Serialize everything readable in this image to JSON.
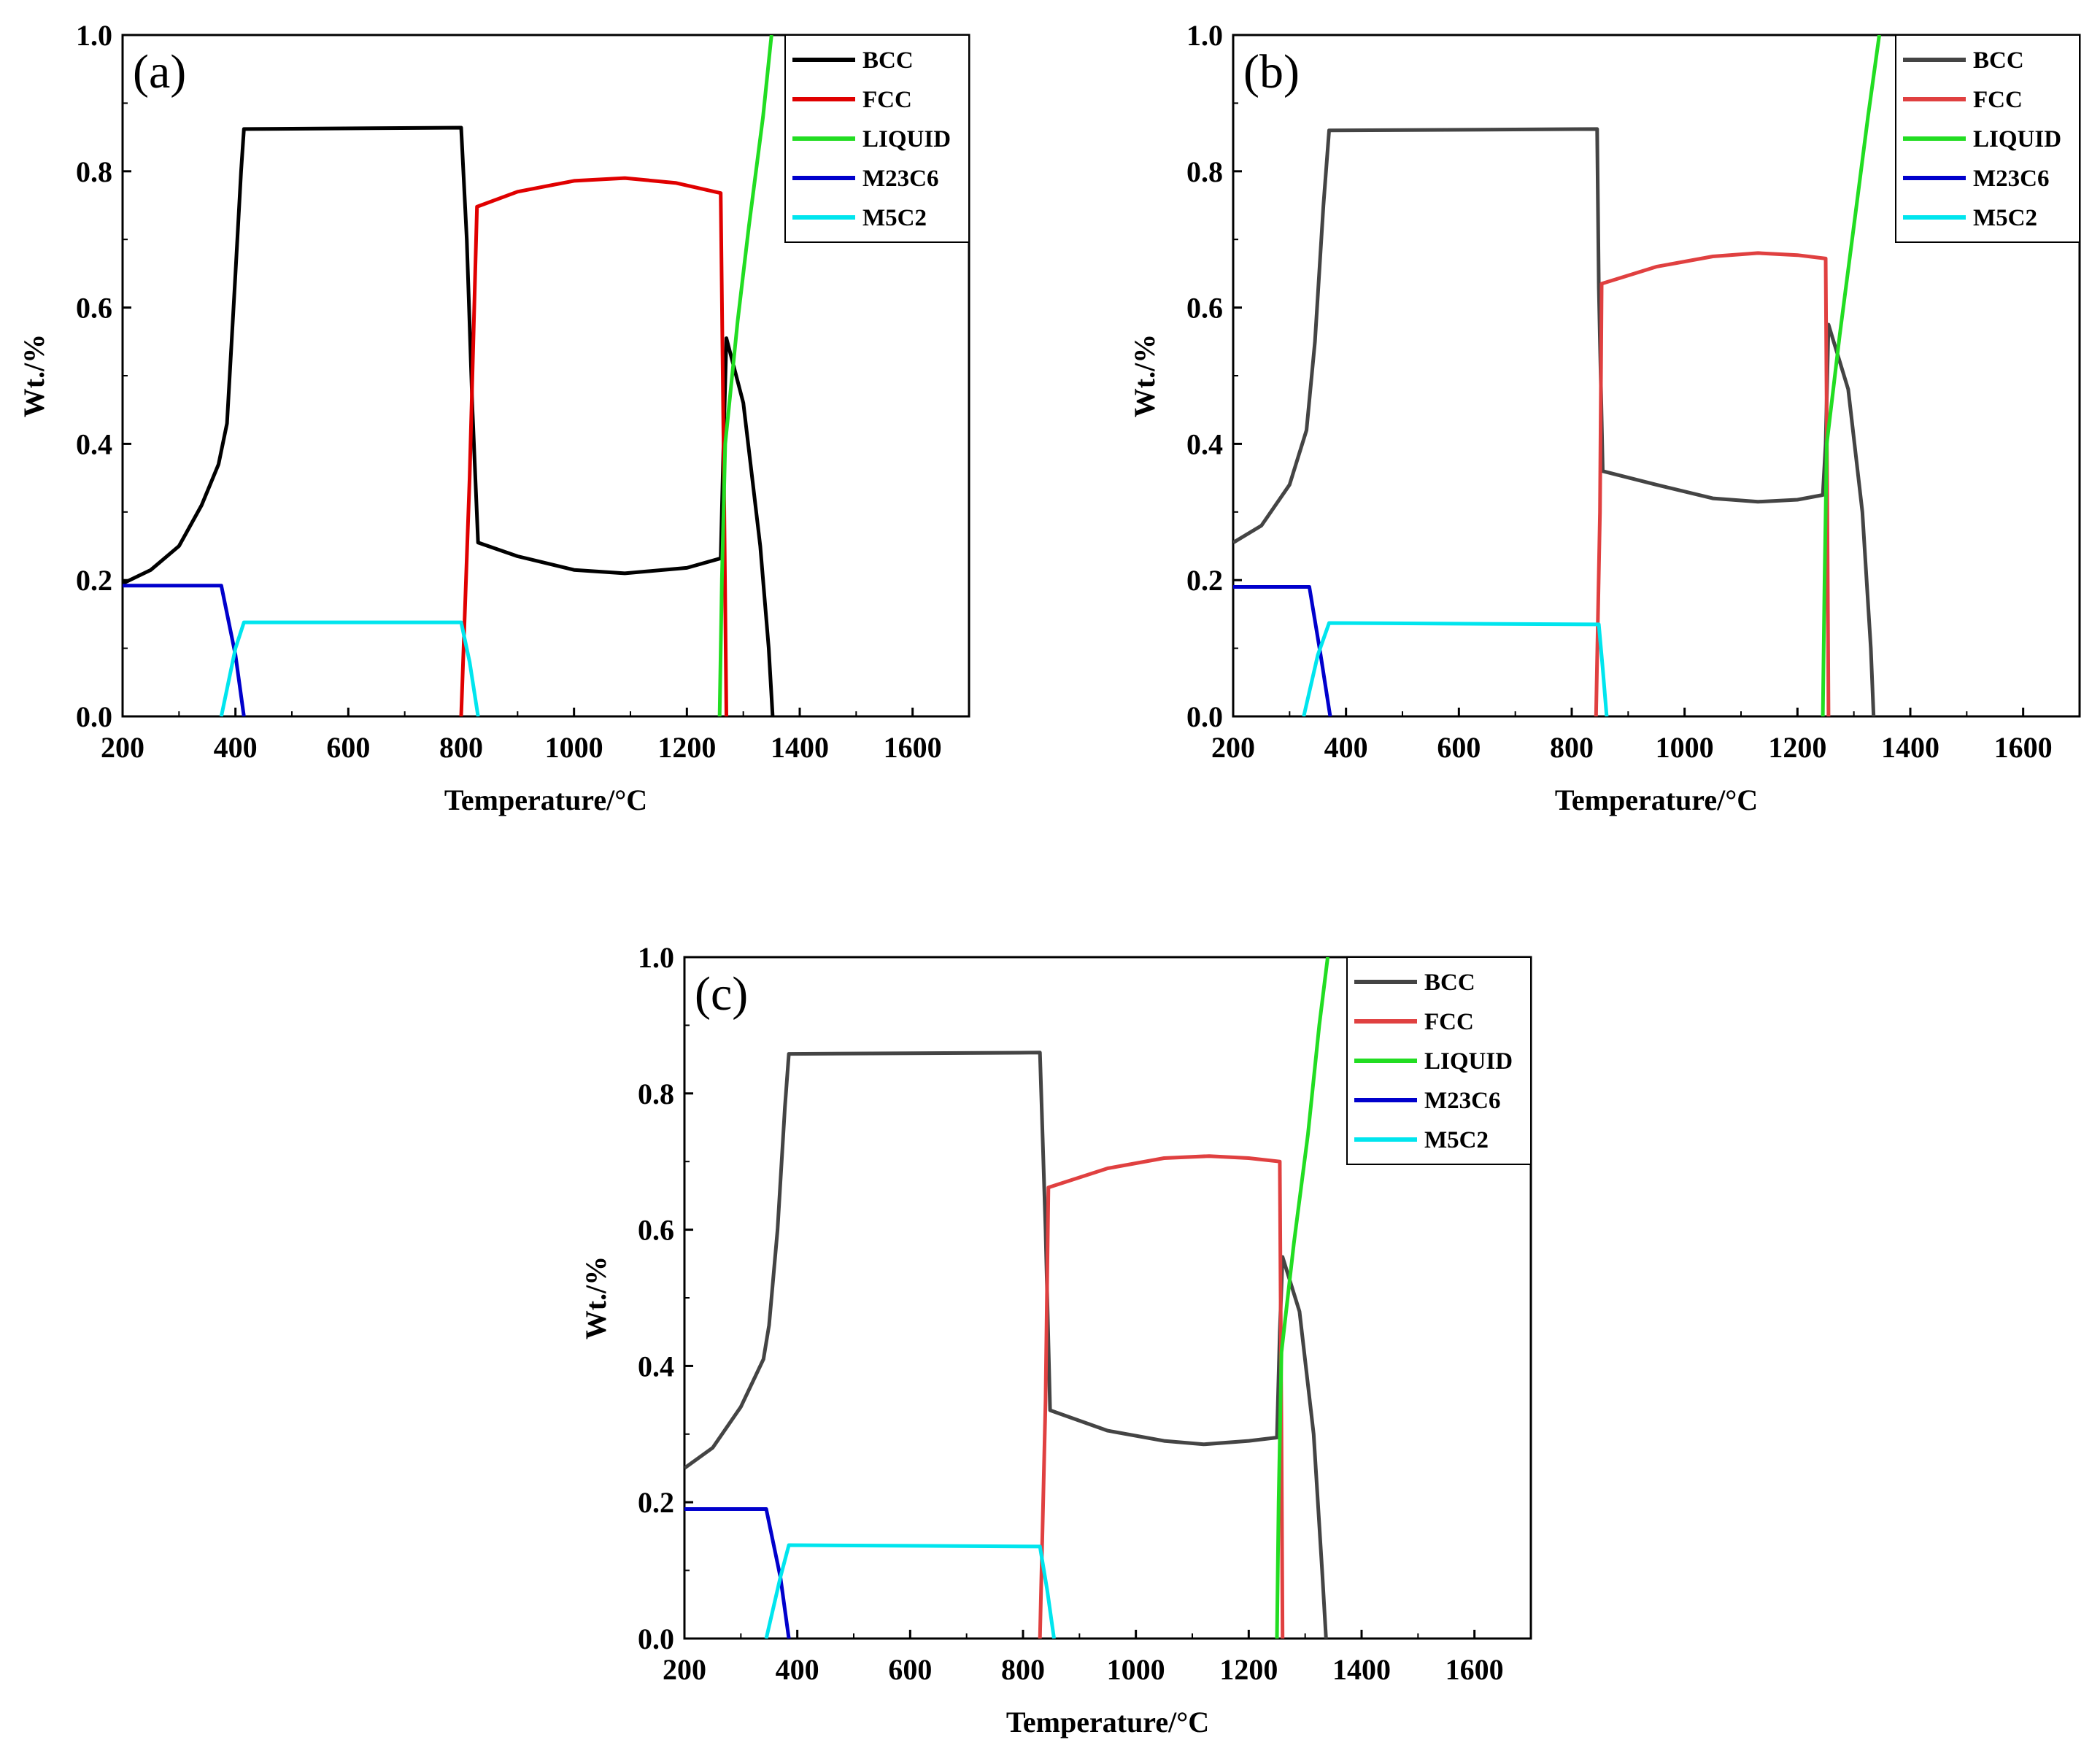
{
  "chart_data": [
    {
      "type": "line",
      "panel_label": "(a)",
      "xlabel": "Temperature/°C",
      "ylabel": "Wt./%",
      "xlim": [
        200,
        1700
      ],
      "ylim": [
        0,
        1.0
      ],
      "xticks": [
        "200",
        "400",
        "600",
        "800",
        "1000",
        "1200",
        "1400",
        "1600"
      ],
      "yticks": [
        "0.0",
        "0.2",
        "0.4",
        "0.6",
        "0.8",
        "1.0"
      ],
      "legend_position": "top-right",
      "series": [
        {
          "name": "BCC",
          "color": "#000000",
          "points": [
            [
              200,
              0.195
            ],
            [
              250,
              0.215
            ],
            [
              300,
              0.25
            ],
            [
              340,
              0.31
            ],
            [
              370,
              0.37
            ],
            [
              385,
              0.43
            ],
            [
              400,
              0.65
            ],
            [
              410,
              0.8
            ],
            [
              415,
              0.862
            ],
            [
              800,
              0.864
            ],
            [
              810,
              0.7
            ],
            [
              820,
              0.45
            ],
            [
              830,
              0.255
            ],
            [
              900,
              0.235
            ],
            [
              1000,
              0.215
            ],
            [
              1090,
              0.21
            ],
            [
              1200,
              0.218
            ],
            [
              1260,
              0.232
            ],
            [
              1265,
              0.4
            ],
            [
              1270,
              0.555
            ],
            [
              1300,
              0.46
            ],
            [
              1330,
              0.25
            ],
            [
              1345,
              0.1
            ],
            [
              1352,
              0.0
            ]
          ]
        },
        {
          "name": "FCC",
          "color": "#e00000",
          "points": [
            [
              800,
              0.0
            ],
            [
              815,
              0.35
            ],
            [
              828,
              0.748
            ],
            [
              900,
              0.77
            ],
            [
              1000,
              0.786
            ],
            [
              1090,
              0.79
            ],
            [
              1180,
              0.783
            ],
            [
              1260,
              0.768
            ],
            [
              1265,
              0.4
            ],
            [
              1270,
              0.0
            ]
          ]
        },
        {
          "name": "LIQUID",
          "color": "#22dd22",
          "points": [
            [
              1258,
              0.0
            ],
            [
              1262,
              0.2
            ],
            [
              1268,
              0.4
            ],
            [
              1290,
              0.58
            ],
            [
              1310,
              0.72
            ],
            [
              1335,
              0.88
            ],
            [
              1350,
              1.0
            ]
          ]
        },
        {
          "name": "M23C6",
          "color": "#0000cc",
          "points": [
            [
              200,
              0.192
            ],
            [
              375,
              0.192
            ],
            [
              400,
              0.09
            ],
            [
              415,
              0.0
            ]
          ]
        },
        {
          "name": "M5C2",
          "color": "#00e5ee",
          "points": [
            [
              375,
              0.0
            ],
            [
              400,
              0.1
            ],
            [
              415,
              0.138
            ],
            [
              800,
              0.138
            ],
            [
              815,
              0.08
            ],
            [
              830,
              0.0
            ]
          ]
        }
      ]
    },
    {
      "type": "line",
      "panel_label": "(b)",
      "xlabel": "Temperature/°C",
      "ylabel": "Wt./%",
      "xlim": [
        200,
        1700
      ],
      "ylim": [
        0,
        1.0
      ],
      "xticks": [
        "200",
        "400",
        "600",
        "800",
        "1000",
        "1200",
        "1400",
        "1600"
      ],
      "yticks": [
        "0.0",
        "0.2",
        "0.4",
        "0.6",
        "0.8",
        "1.0"
      ],
      "legend_position": "top-right",
      "series": [
        {
          "name": "BCC",
          "color": "#444444",
          "points": [
            [
              200,
              0.255
            ],
            [
              250,
              0.28
            ],
            [
              300,
              0.34
            ],
            [
              330,
              0.42
            ],
            [
              345,
              0.55
            ],
            [
              360,
              0.75
            ],
            [
              370,
              0.86
            ],
            [
              845,
              0.862
            ],
            [
              848,
              0.63
            ],
            [
              855,
              0.36
            ],
            [
              950,
              0.34
            ],
            [
              1050,
              0.32
            ],
            [
              1130,
              0.315
            ],
            [
              1200,
              0.318
            ],
            [
              1245,
              0.325
            ],
            [
              1250,
              0.4
            ],
            [
              1255,
              0.575
            ],
            [
              1290,
              0.48
            ],
            [
              1315,
              0.3
            ],
            [
              1330,
              0.1
            ],
            [
              1335,
              0.0
            ]
          ]
        },
        {
          "name": "FCC",
          "color": "#e04040",
          "points": [
            [
              843,
              0.0
            ],
            [
              850,
              0.3
            ],
            [
              853,
              0.635
            ],
            [
              950,
              0.66
            ],
            [
              1050,
              0.675
            ],
            [
              1130,
              0.68
            ],
            [
              1200,
              0.677
            ],
            [
              1250,
              0.672
            ],
            [
              1253,
              0.3
            ],
            [
              1255,
              0.0
            ]
          ]
        },
        {
          "name": "LIQUID",
          "color": "#22dd22",
          "points": [
            [
              1245,
              0.0
            ],
            [
              1248,
              0.2
            ],
            [
              1252,
              0.4
            ],
            [
              1275,
              0.56
            ],
            [
              1300,
              0.72
            ],
            [
              1325,
              0.88
            ],
            [
              1345,
              1.0
            ]
          ]
        },
        {
          "name": "M23C6",
          "color": "#0000cc",
          "points": [
            [
              200,
              0.19
            ],
            [
              335,
              0.19
            ],
            [
              355,
              0.09
            ],
            [
              372,
              0.0
            ]
          ]
        },
        {
          "name": "M5C2",
          "color": "#00e5ee",
          "points": [
            [
              325,
              0.0
            ],
            [
              350,
              0.09
            ],
            [
              370,
              0.137
            ],
            [
              848,
              0.135
            ],
            [
              855,
              0.07
            ],
            [
              862,
              0.0
            ]
          ]
        }
      ]
    },
    {
      "type": "line",
      "panel_label": "(c)",
      "xlabel": "Temperature/°C",
      "ylabel": "Wt./%",
      "xlim": [
        200,
        1700
      ],
      "ylim": [
        0,
        1.0
      ],
      "xticks": [
        "200",
        "400",
        "600",
        "800",
        "1000",
        "1200",
        "1400",
        "1600"
      ],
      "yticks": [
        "0.0",
        "0.2",
        "0.4",
        "0.6",
        "0.8",
        "1.0"
      ],
      "legend_position": "top-right",
      "series": [
        {
          "name": "BCC",
          "color": "#444444",
          "points": [
            [
              200,
              0.25
            ],
            [
              250,
              0.28
            ],
            [
              300,
              0.34
            ],
            [
              340,
              0.41
            ],
            [
              350,
              0.46
            ],
            [
              365,
              0.6
            ],
            [
              378,
              0.78
            ],
            [
              385,
              0.858
            ],
            [
              830,
              0.86
            ],
            [
              840,
              0.6
            ],
            [
              848,
              0.335
            ],
            [
              950,
              0.305
            ],
            [
              1050,
              0.29
            ],
            [
              1120,
              0.285
            ],
            [
              1200,
              0.29
            ],
            [
              1250,
              0.295
            ],
            [
              1255,
              0.45
            ],
            [
              1260,
              0.56
            ],
            [
              1290,
              0.48
            ],
            [
              1315,
              0.3
            ],
            [
              1330,
              0.1
            ],
            [
              1337,
              0.0
            ]
          ]
        },
        {
          "name": "FCC",
          "color": "#e04040",
          "points": [
            [
              830,
              0.0
            ],
            [
              840,
              0.35
            ],
            [
              845,
              0.662
            ],
            [
              950,
              0.69
            ],
            [
              1050,
              0.705
            ],
            [
              1130,
              0.708
            ],
            [
              1200,
              0.705
            ],
            [
              1255,
              0.7
            ],
            [
              1258,
              0.3
            ],
            [
              1260,
              0.0
            ]
          ]
        },
        {
          "name": "LIQUID",
          "color": "#22dd22",
          "points": [
            [
              1250,
              0.0
            ],
            [
              1253,
              0.2
            ],
            [
              1258,
              0.42
            ],
            [
              1280,
              0.58
            ],
            [
              1305,
              0.74
            ],
            [
              1325,
              0.9
            ],
            [
              1340,
              1.0
            ]
          ]
        },
        {
          "name": "M23C6",
          "color": "#0000cc",
          "points": [
            [
              200,
              0.19
            ],
            [
              345,
              0.19
            ],
            [
              370,
              0.09
            ],
            [
              385,
              0.0
            ]
          ]
        },
        {
          "name": "M5C2",
          "color": "#00e5ee",
          "points": [
            [
              345,
              0.0
            ],
            [
              370,
              0.09
            ],
            [
              385,
              0.137
            ],
            [
              830,
              0.135
            ],
            [
              843,
              0.07
            ],
            [
              855,
              0.0
            ]
          ]
        }
      ]
    }
  ]
}
